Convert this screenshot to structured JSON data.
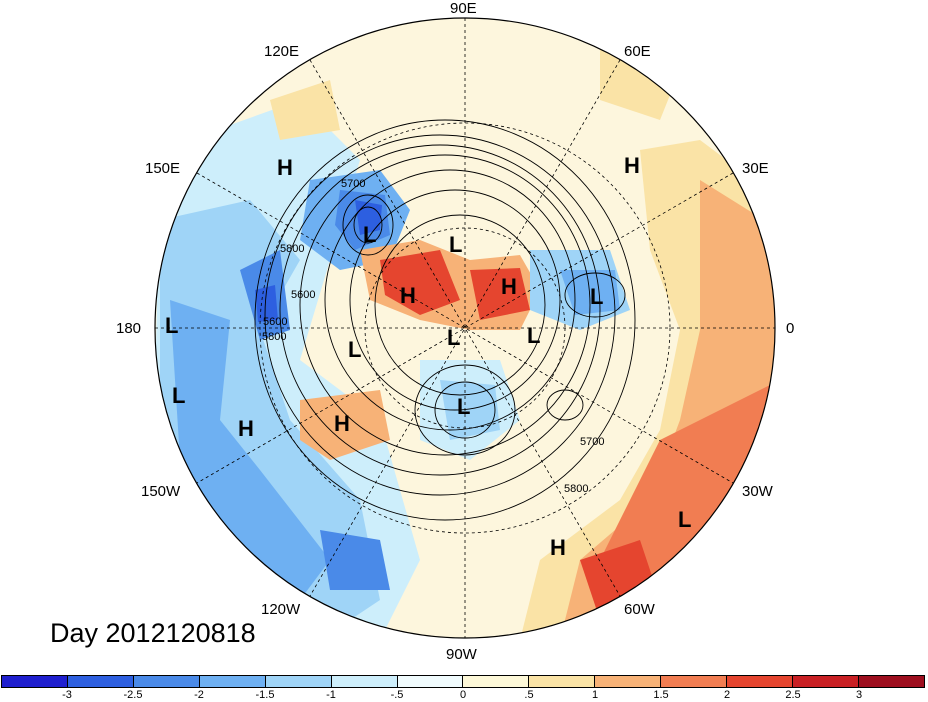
{
  "map": {
    "projection": "north-polar-stereographic",
    "field": "500 hPa geopotential height contours over anomaly shading",
    "longitude_labels": [
      "90E",
      "60E",
      "30E",
      "0",
      "30W",
      "60W",
      "90W",
      "120W",
      "150W",
      "180",
      "150E",
      "120E"
    ],
    "contour_labels": [
      "5700",
      "5800",
      "5600",
      "5800",
      "5700",
      "5800",
      "5600"
    ],
    "pressure_centers": [
      {
        "name": "high-siberia",
        "label": "H"
      },
      {
        "name": "low-east-asia",
        "label": "L"
      },
      {
        "name": "low-kara",
        "label": "L"
      },
      {
        "name": "high-arctic-ocean",
        "label": "H"
      },
      {
        "name": "high-greenland-sea",
        "label": "H"
      },
      {
        "name": "low-scandinavia",
        "label": "L"
      },
      {
        "name": "high-north-africa",
        "label": "H"
      },
      {
        "name": "low-dateline",
        "label": "L"
      },
      {
        "name": "low-beaufort",
        "label": "L"
      },
      {
        "name": "low-north-canada",
        "label": "L"
      },
      {
        "name": "low-baffin",
        "label": "L"
      },
      {
        "name": "low-hudson",
        "label": "L"
      },
      {
        "name": "low-north-pacific",
        "label": "L"
      },
      {
        "name": "high-gulf-alaska",
        "label": "H"
      },
      {
        "name": "high-pacific",
        "label": "H"
      },
      {
        "name": "low-central-atlantic",
        "label": "L"
      },
      {
        "name": "high-west-atlantic",
        "label": "H"
      }
    ],
    "date_label": "Day 2012120818"
  },
  "colorbar": {
    "colors": [
      "#1f1fcf",
      "#2d5fe0",
      "#4a8ae8",
      "#6eb0f2",
      "#9fd4f7",
      "#cdeefb",
      "#f0fbfd",
      "#fdf8d8",
      "#fae3a6",
      "#f7b277",
      "#f17d52",
      "#e5452f",
      "#c92024",
      "#9e0f1f"
    ],
    "tick_labels": [
      "-3",
      "-2.5",
      "-2",
      "-1.5",
      "-1",
      "-.5",
      "0",
      ".5",
      "1",
      "1.5",
      "2",
      "2.5",
      "3"
    ]
  }
}
